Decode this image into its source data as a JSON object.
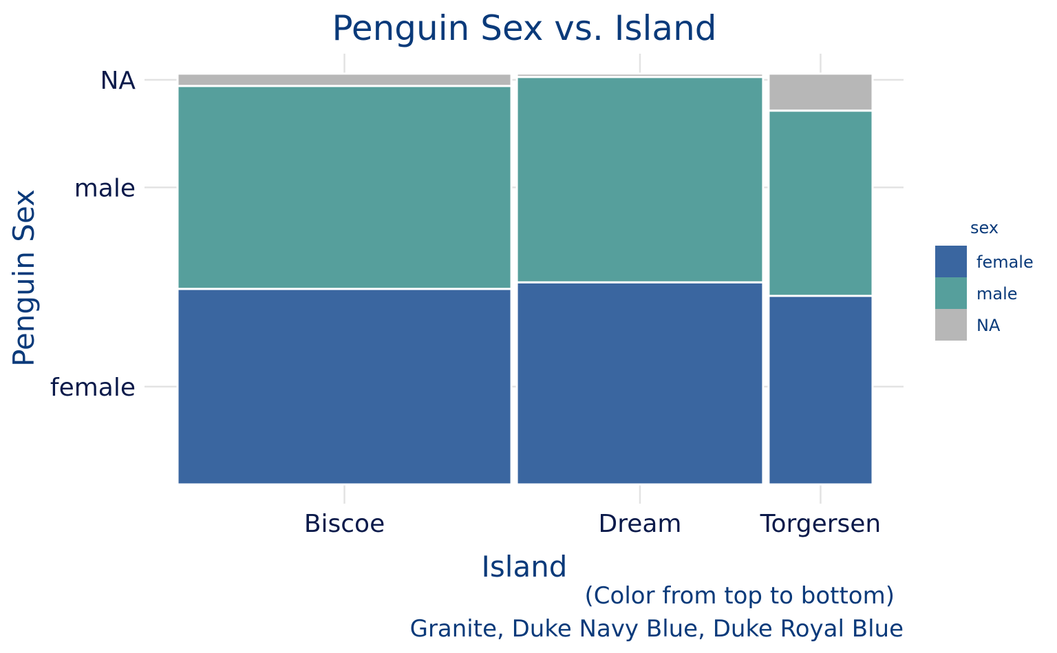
{
  "chart_data": {
    "type": "mosaic",
    "title": "Penguin Sex vs. Island",
    "xlabel": "Island",
    "ylabel": "Penguin Sex",
    "caption_lines": [
      "(Color from top to bottom)",
      "Granite, Duke Navy Blue, Duke Royal Blue"
    ],
    "categories": [
      "Biscoe",
      "Dream",
      "Torgersen"
    ],
    "category_widths": [
      0.488,
      0.36,
      0.152
    ],
    "y_ticks": [
      "female",
      "male",
      "NA"
    ],
    "series": [
      {
        "name": "female",
        "color": "#3a66a0",
        "values": [
          0.476,
          0.492,
          0.459
        ]
      },
      {
        "name": "male",
        "color": "#569f9c",
        "values": [
          0.494,
          0.5,
          0.451
        ]
      },
      {
        "name": "NA",
        "color": "#b7b7b7",
        "values": [
          0.03,
          0.008,
          0.09
        ]
      }
    ],
    "legend": {
      "title": "sex",
      "position": "right"
    },
    "grid": true
  }
}
